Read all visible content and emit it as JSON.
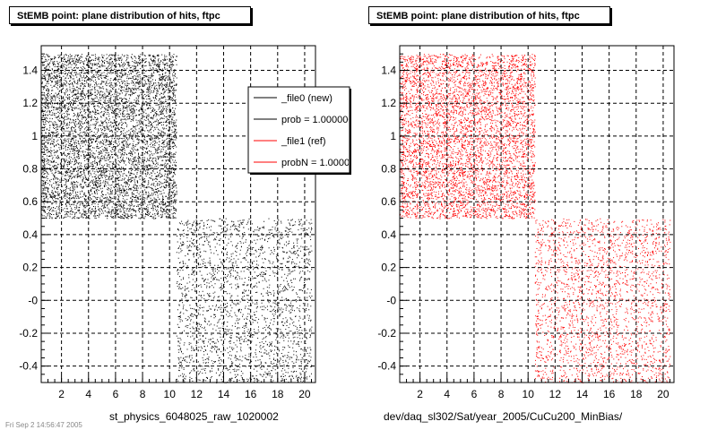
{
  "chart_data": [
    {
      "type": "scatter",
      "title": "StEMB point: plane distribution of hits, ftpc",
      "xlabel": "st_physics_6048025_raw_1020002",
      "ylabel": "",
      "xlim": [
        0.5,
        20.8
      ],
      "ylim": [
        -0.5,
        1.55
      ],
      "x_ticks": [
        "2",
        "4",
        "6",
        "8",
        "10",
        "12",
        "14",
        "16",
        "18",
        "20"
      ],
      "y_ticks": [
        "-0.4",
        "-0.2",
        "-0",
        "0.2",
        "0.4",
        "0.6",
        "0.8",
        "1",
        "1.2",
        "1.4"
      ],
      "grid": true,
      "point_color": "#000000",
      "regions": [
        {
          "x": [
            0.5,
            10.5
          ],
          "y": [
            0.5,
            1.5
          ],
          "density": "high"
        },
        {
          "x": [
            10.5,
            20.5
          ],
          "y": [
            -0.5,
            0.5
          ],
          "density": "low"
        }
      ],
      "legend": {
        "position": "top-right",
        "entries": [
          {
            "label": "_file0 (new)",
            "color": "#000000"
          },
          {
            "label": "prob = 1.000000",
            "color": "#000000"
          },
          {
            "label": "_file1 (ref)",
            "color": "#ff0000"
          },
          {
            "label": "probN = 1.000000",
            "color": "#ff0000"
          }
        ]
      }
    },
    {
      "type": "scatter",
      "title": "StEMB point: plane distribution of hits, ftpc",
      "xlabel": "dev/daq_sl302/Sat/year_2005/CuCu200_MinBias/",
      "ylabel": "",
      "xlim": [
        0.5,
        20.8
      ],
      "ylim": [
        -0.5,
        1.55
      ],
      "x_ticks": [
        "2",
        "4",
        "6",
        "8",
        "10",
        "12",
        "14",
        "16",
        "18",
        "20"
      ],
      "y_ticks": [
        "-0.4",
        "-0.2",
        "-0",
        "0.2",
        "0.4",
        "0.6",
        "0.8",
        "1",
        "1.2",
        "1.4"
      ],
      "grid": true,
      "point_color": "#ff0000",
      "regions": [
        {
          "x": [
            0.5,
            10.5
          ],
          "y": [
            0.5,
            1.5
          ],
          "density": "high"
        },
        {
          "x": [
            10.5,
            20.5
          ],
          "y": [
            -0.5,
            0.5
          ],
          "density": "low"
        }
      ]
    }
  ],
  "footer": {
    "date_stamp": "Fri Sep 2 14:56:47 2005"
  }
}
